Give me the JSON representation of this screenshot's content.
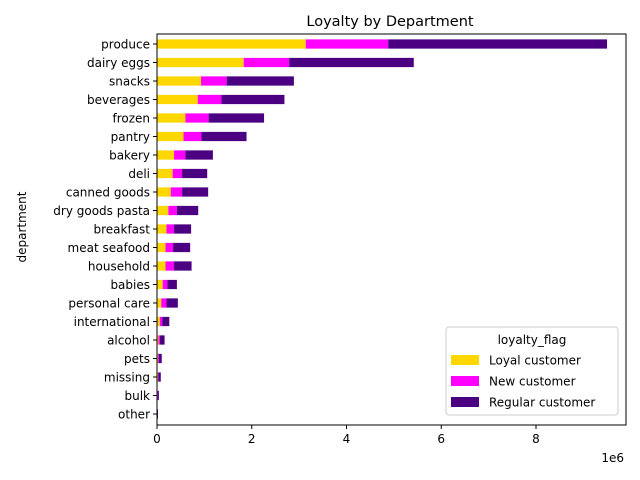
{
  "chart_data": {
    "type": "bar",
    "orientation": "horizontal",
    "stacked": true,
    "title": "Loyalty by Department",
    "xlabel": "",
    "ylabel": "department",
    "x_offset_label": "1e6",
    "x_scale": 1000000,
    "xlim": [
      0,
      9.9
    ],
    "xticks": [
      0,
      2,
      4,
      6,
      8
    ],
    "grid": false,
    "legend": {
      "title": "loyalty_flag",
      "position": "lower-right"
    },
    "categories": [
      "produce",
      "dairy eggs",
      "snacks",
      "beverages",
      "frozen",
      "pantry",
      "bakery",
      "deli",
      "canned goods",
      "dry goods pasta",
      "breakfast",
      "meat seafood",
      "household",
      "babies",
      "personal care",
      "international",
      "alcohol",
      "pets",
      "missing",
      "bulk",
      "other"
    ],
    "series": [
      {
        "name": "Loyal customer",
        "color": "#ffd700",
        "values": [
          3.14,
          1.83,
          0.93,
          0.86,
          0.6,
          0.56,
          0.36,
          0.33,
          0.29,
          0.24,
          0.2,
          0.18,
          0.18,
          0.12,
          0.09,
          0.06,
          0.03,
          0.02,
          0.02,
          0.01,
          0.01
        ]
      },
      {
        "name": "New customer",
        "color": "#ff00ff",
        "values": [
          1.74,
          0.96,
          0.54,
          0.5,
          0.49,
          0.38,
          0.24,
          0.2,
          0.24,
          0.18,
          0.16,
          0.16,
          0.18,
          0.1,
          0.11,
          0.05,
          0.03,
          0.02,
          0.01,
          0.01,
          0.0
        ]
      },
      {
        "name": "Regular customer",
        "color": "#4b0082",
        "values": [
          4.62,
          2.63,
          1.42,
          1.33,
          1.17,
          0.95,
          0.58,
          0.53,
          0.55,
          0.45,
          0.36,
          0.36,
          0.37,
          0.2,
          0.24,
          0.15,
          0.1,
          0.06,
          0.05,
          0.02,
          0.01
        ]
      }
    ]
  }
}
